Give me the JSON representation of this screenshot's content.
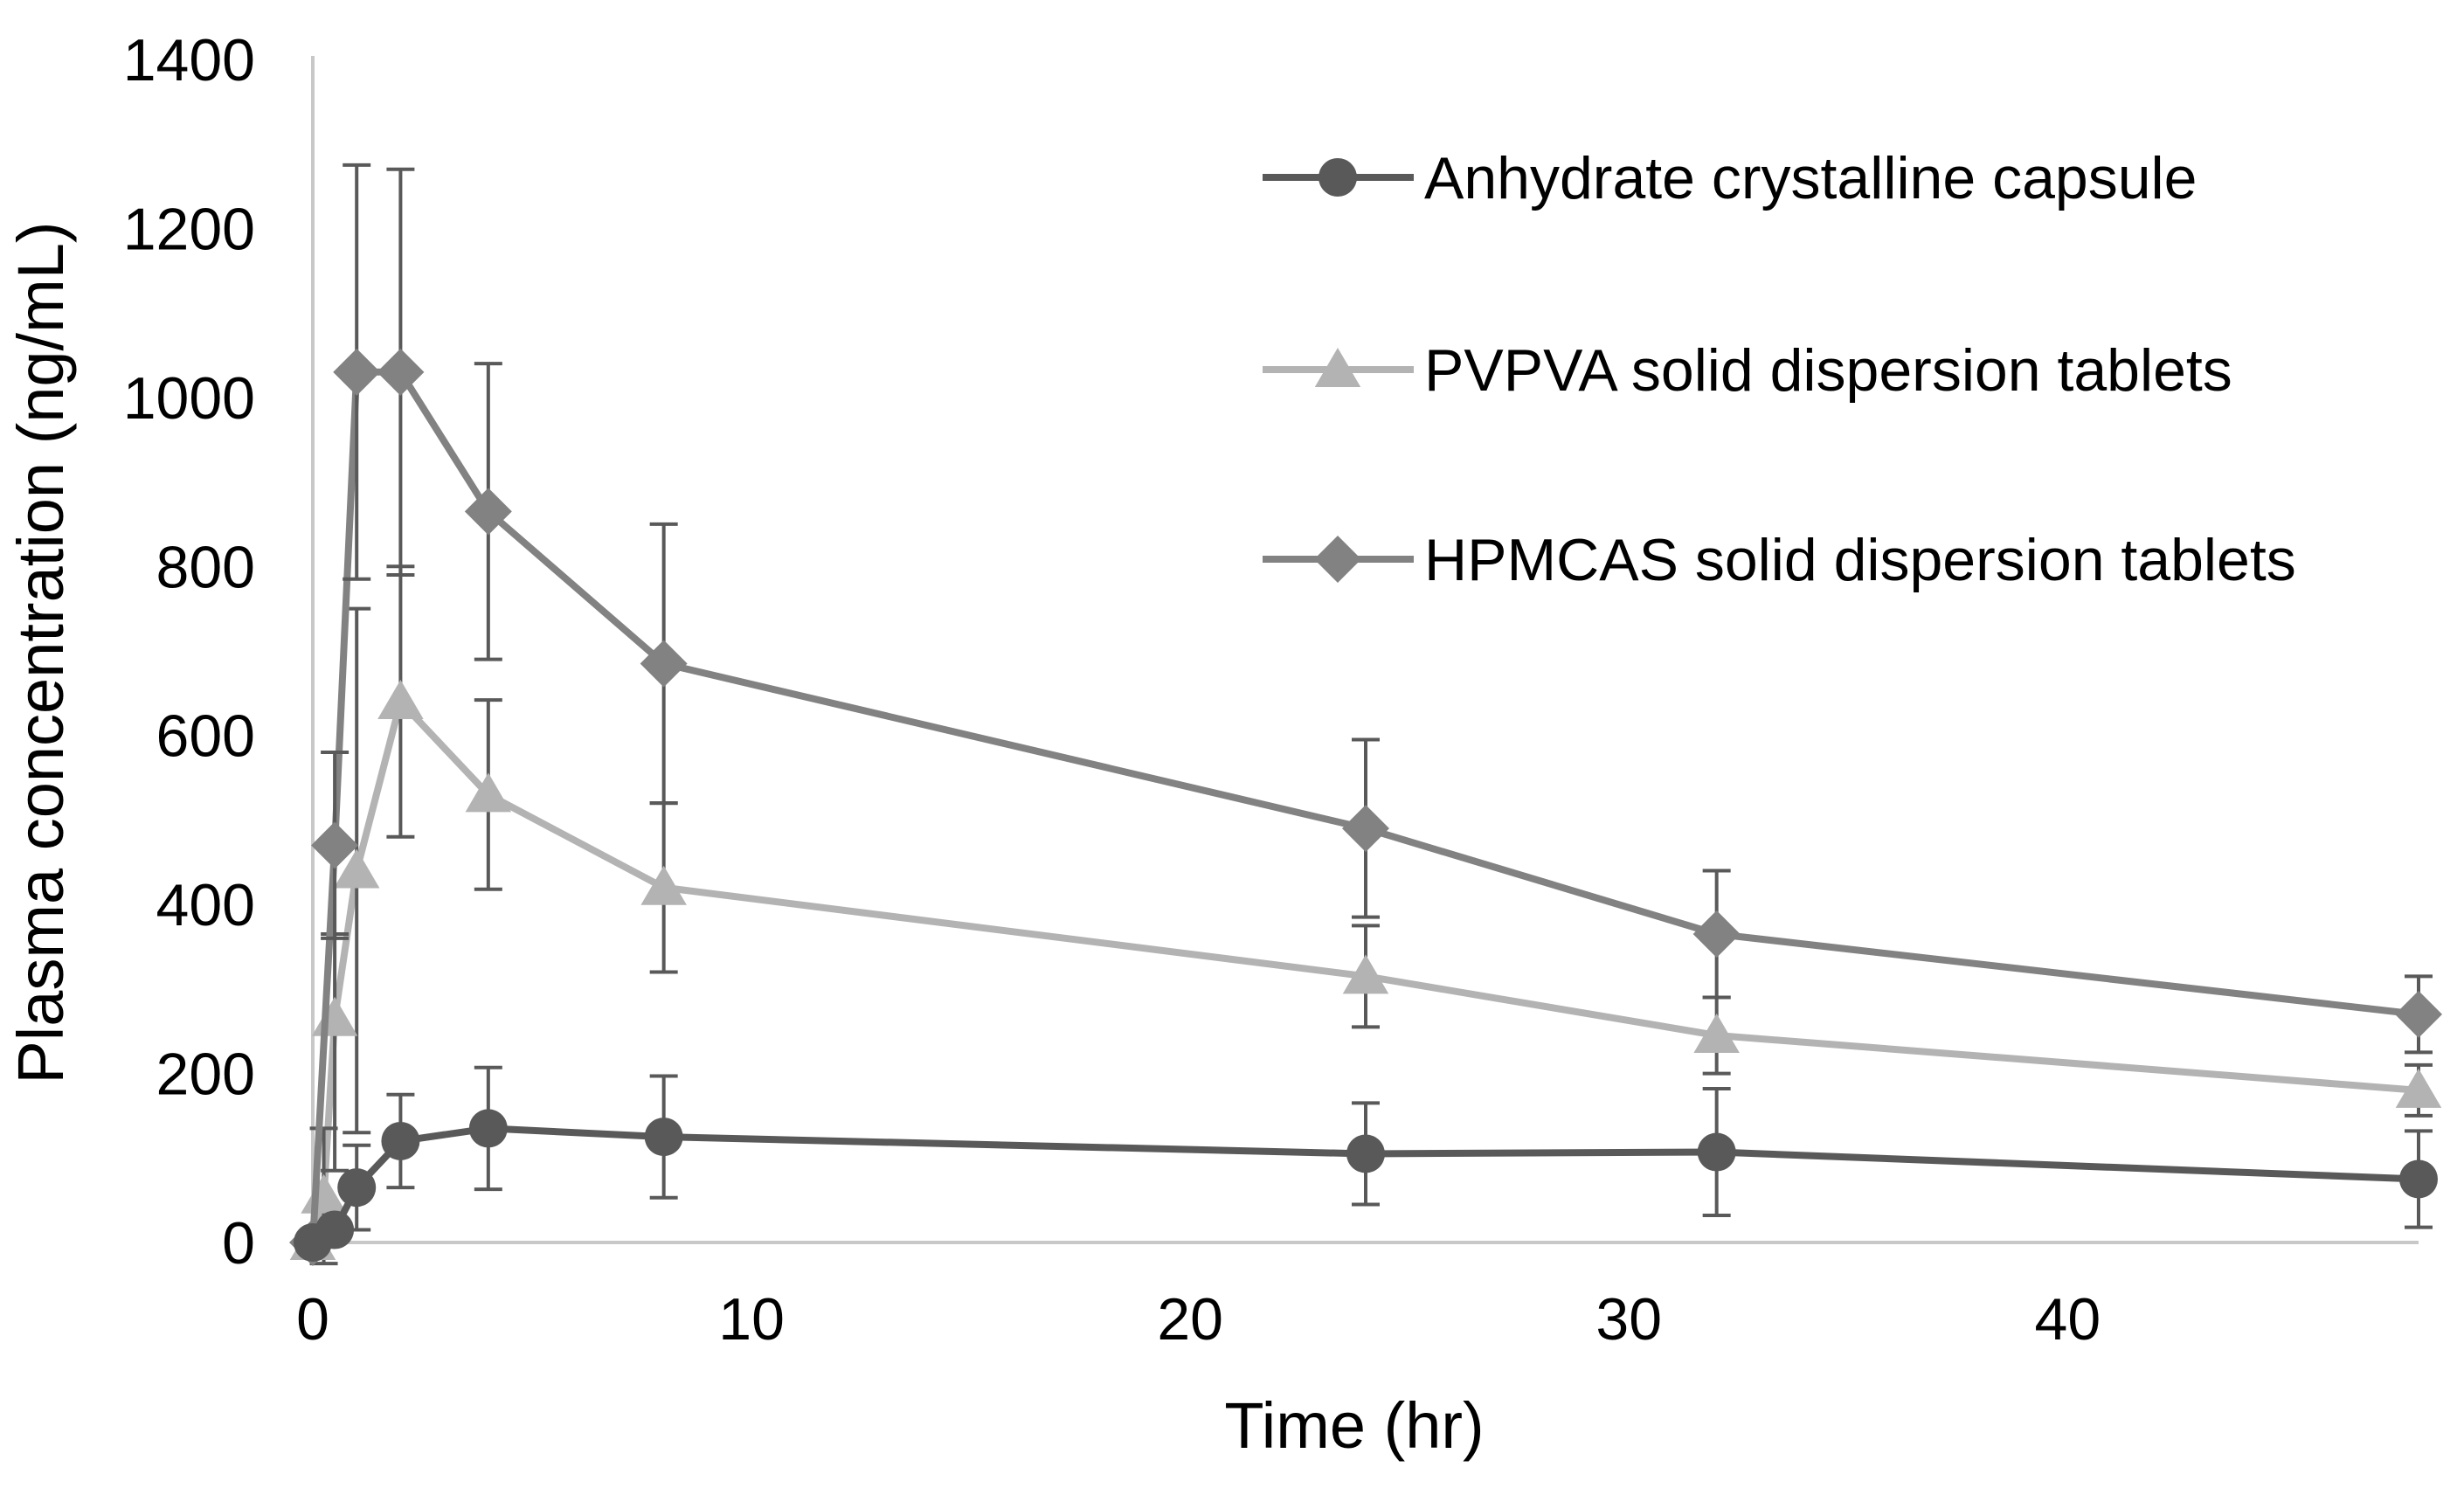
{
  "chart_data": {
    "type": "line",
    "title": "",
    "xlabel": "Time (hr)",
    "ylabel": "Plasma concentration (ng/mL)",
    "xlim": [
      0,
      48
    ],
    "ylim": [
      0,
      1400
    ],
    "xticks": [
      0,
      10,
      20,
      30,
      40
    ],
    "xtick_labels": [
      "0",
      "10",
      "20",
      "30",
      "40"
    ],
    "yticks": [
      0,
      200,
      400,
      600,
      800,
      1000,
      1200,
      1400
    ],
    "ytick_labels": [
      "0",
      "200",
      "400",
      "600",
      "800",
      "1000",
      "1200",
      "1400"
    ],
    "grid": false,
    "legend_position": "top-right",
    "series": [
      {
        "name": "Anhydrate crystalline capsule",
        "marker": "circle",
        "color": "#595959",
        "x": [
          0,
          0.5,
          1,
          2,
          4,
          8,
          24,
          32,
          48
        ],
        "y": [
          0,
          15,
          65,
          120,
          135,
          125,
          105,
          107,
          75
        ],
        "err_low": [
          0,
          10,
          50,
          55,
          72,
          72,
          60,
          75,
          57
        ],
        "err_high": [
          0,
          10,
          50,
          55,
          72,
          72,
          60,
          75,
          57
        ]
      },
      {
        "name": "PVPVA solid dispersion tablets",
        "marker": "triangle",
        "color": "#b3b3b3",
        "x": [
          0,
          0.25,
          0.5,
          1,
          2,
          4,
          8,
          24,
          32,
          48
        ],
        "y": [
          0,
          55,
          265,
          440,
          640,
          530,
          420,
          315,
          245,
          180
        ],
        "err_low": [
          0,
          80,
          180,
          310,
          160,
          112,
          100,
          60,
          45,
          30
        ],
        "err_high": [
          0,
          80,
          100,
          310,
          160,
          112,
          100,
          60,
          45,
          30
        ]
      },
      {
        "name": "HPMCAS solid dispersion tablets",
        "marker": "diamond",
        "color": "#828282",
        "x": [
          0,
          0.5,
          1,
          2,
          4,
          8,
          24,
          32,
          48
        ],
        "y": [
          0,
          470,
          1030,
          1030,
          865,
          685,
          490,
          365,
          270
        ],
        "err_low": [
          0,
          110,
          245,
          240,
          175,
          165,
          105,
          75,
          45
        ],
        "err_high": [
          0,
          110,
          245,
          240,
          175,
          165,
          105,
          75,
          45
        ]
      }
    ]
  }
}
